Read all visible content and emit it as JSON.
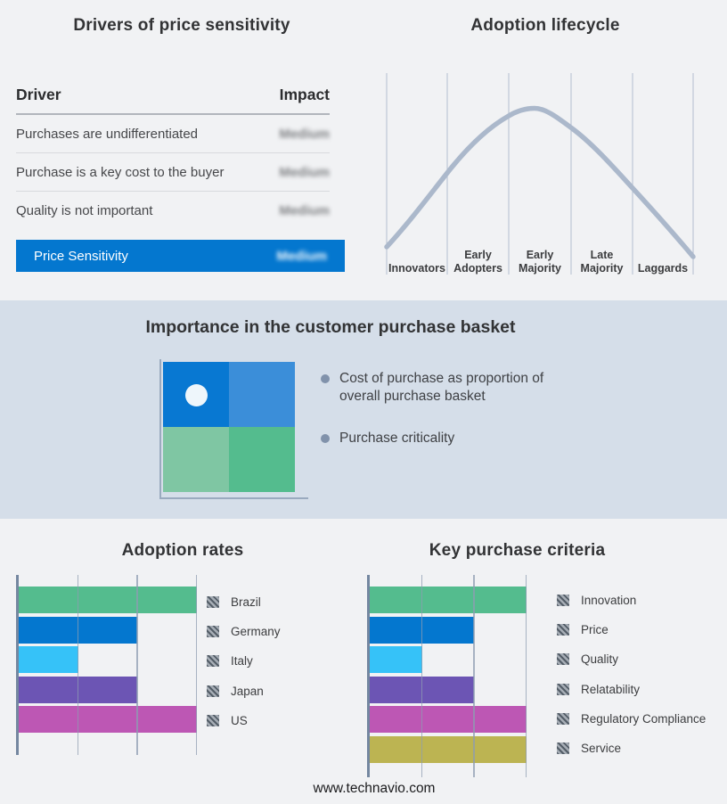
{
  "page": {
    "background": "#f1f2f4",
    "band_background": "#d5dee9",
    "footer_url": "www.technavio.com"
  },
  "price_sensitivity_table": {
    "title": "Drivers of price sensitivity",
    "columns": {
      "driver": "Driver",
      "impact": "Impact"
    },
    "rows": [
      {
        "driver": "Purchases are undifferentiated",
        "impact": "Medium",
        "impact_redacted": true
      },
      {
        "driver": "Purchase is a key cost to the buyer",
        "impact": "Medium",
        "impact_redacted": true
      },
      {
        "driver": "Quality is not important",
        "impact": "Medium",
        "impact_redacted": true
      }
    ],
    "summary_row": {
      "driver": "Price Sensitivity",
      "impact": "Medium",
      "impact_redacted": true,
      "background": "#0477cf"
    }
  },
  "adoption_lifecycle": {
    "title": "Adoption lifecycle",
    "stages": [
      "Innovators",
      "Early Adopters",
      "Early Majority",
      "Late Majority",
      "Laggards"
    ],
    "curve_color": "#abb8cb",
    "gridline_color": "#b3bfd0",
    "curve_shape": "bell curve peaking in Early Majority"
  },
  "purchase_basket": {
    "title": "Importance in the customer purchase basket",
    "bullets": [
      "Cost of purchase as proportion of overall purchase basket",
      "Purchase criticality"
    ],
    "quadrant_colors": {
      "top_left": "#0878d2",
      "top_right": "#3b8ed9",
      "bottom_left": "#7fc6a3",
      "bottom_right": "#54bc8e"
    },
    "marker": {
      "quadrant": "top_left",
      "color": "#eef6fb"
    }
  },
  "chart_data": [
    {
      "type": "bar",
      "orientation": "horizontal",
      "title": "Adoption rates",
      "categories": [
        "Brazil",
        "Germany",
        "Italy",
        "Japan",
        "US"
      ],
      "values": [
        3,
        2,
        1,
        2,
        3
      ],
      "xlim": [
        0,
        3
      ],
      "ticks": [
        1,
        2,
        3
      ],
      "grid": true,
      "legend_position": "right",
      "legend_swatch": "hatched",
      "bar_colors": [
        "#54bc8e",
        "#0477cf",
        "#36c2f8",
        "#6c55b4",
        "#bd57b4"
      ]
    },
    {
      "type": "bar",
      "orientation": "horizontal",
      "title": "Key purchase criteria",
      "categories": [
        "Innovation",
        "Price",
        "Quality",
        "Relatability",
        "Regulatory Compliance",
        "Service"
      ],
      "values": [
        3,
        2,
        1,
        2,
        3,
        3
      ],
      "xlim": [
        0,
        3
      ],
      "ticks": [
        1,
        2,
        3
      ],
      "grid": true,
      "legend_position": "right",
      "legend_swatch": "hatched",
      "bar_colors": [
        "#54bc8e",
        "#0477cf",
        "#36c2f8",
        "#6c55b4",
        "#bd57b4",
        "#bcb452"
      ]
    }
  ]
}
